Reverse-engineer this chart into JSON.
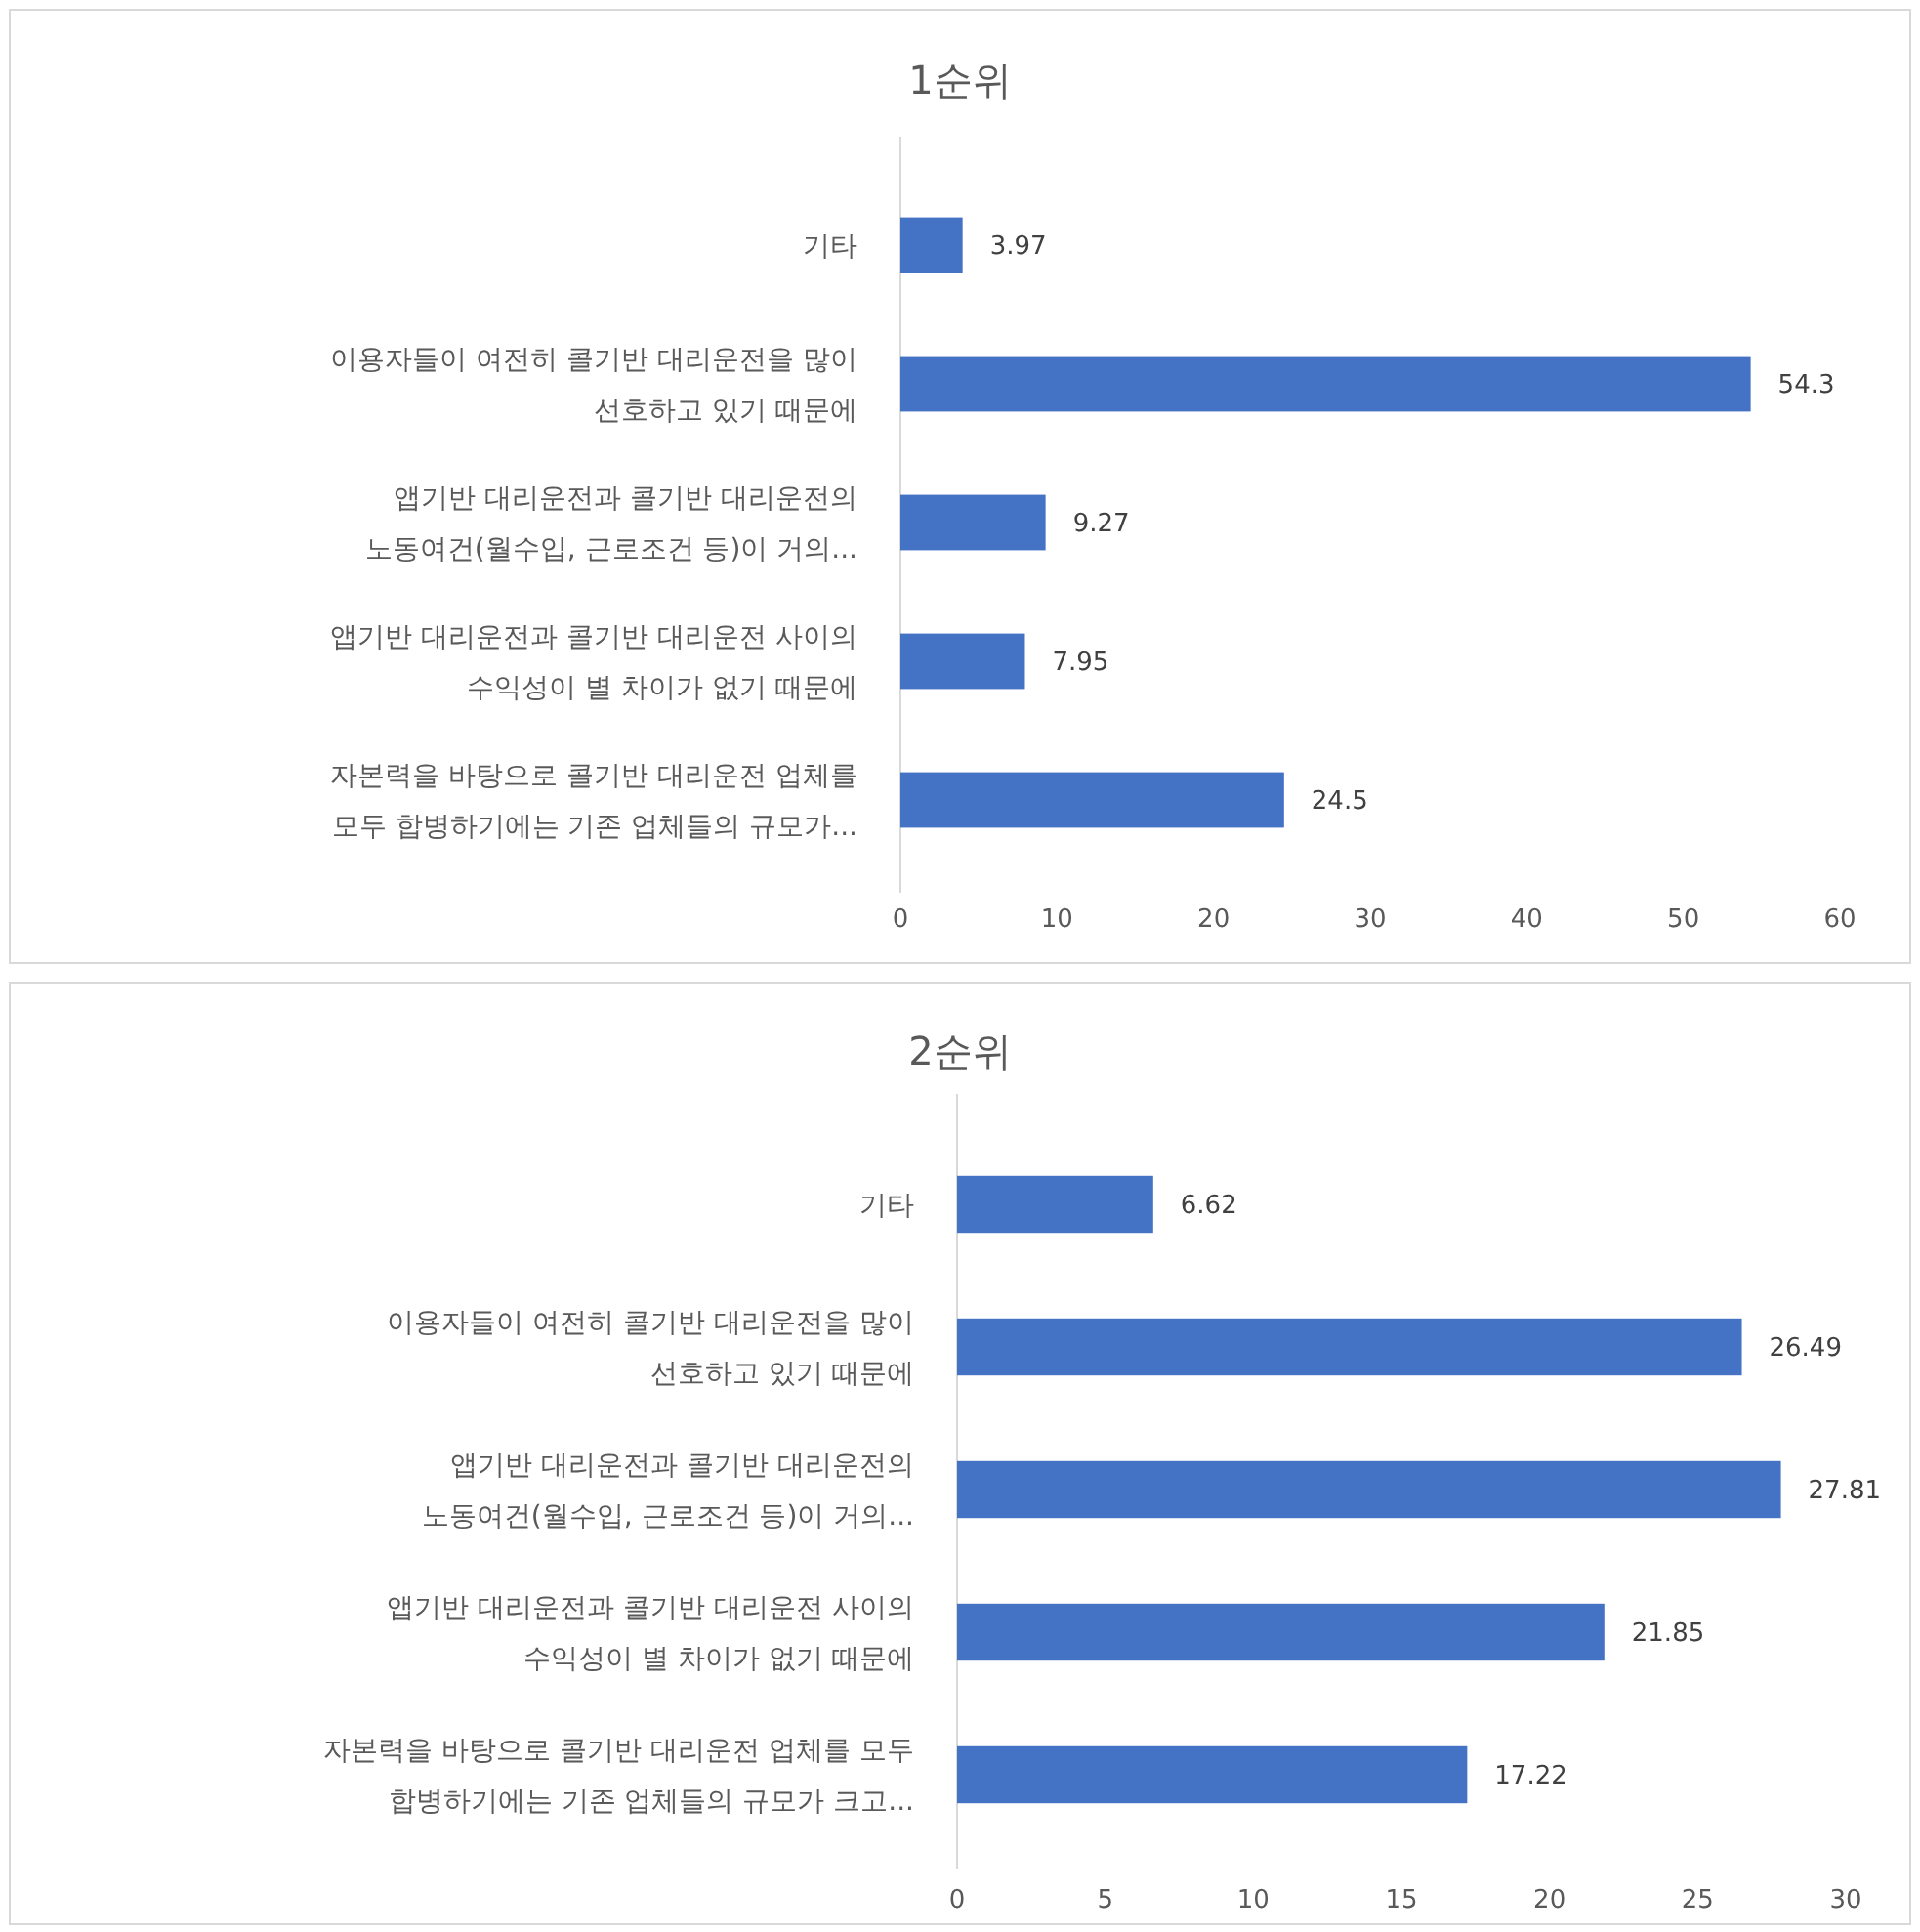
{
  "chart_data": [
    {
      "type": "bar",
      "orientation": "horizontal",
      "title": "1순위",
      "categories": [
        "기타",
        "이용자들이 여전히 콜기반 대리운전을 많이\n선호하고 있기 때문에",
        "앱기반 대리운전과 콜기반 대리운전의\n노동여건(월수입, 근로조건 등)이 거의...",
        "앱기반 대리운전과 콜기반 대리운전 사이의\n수익성이 별 차이가 없기 때문에",
        "자본력을 바탕으로 콜기반 대리운전 업체를\n모두 합병하기에는 기존 업체들의 규모가..."
      ],
      "values": [
        3.97,
        54.3,
        9.27,
        7.95,
        24.5
      ],
      "color": "#4472c4",
      "xlim": [
        0,
        60
      ],
      "xticks": [
        0,
        10,
        20,
        30,
        40,
        50,
        60
      ],
      "data_labels": true
    },
    {
      "type": "bar",
      "orientation": "horizontal",
      "title": "2순위",
      "categories": [
        "기타",
        "이용자들이 여전히 콜기반 대리운전을 많이\n선호하고 있기 때문에",
        "앱기반 대리운전과 콜기반 대리운전의\n노동여건(월수입, 근로조건 등)이 거의...",
        "앱기반 대리운전과 콜기반 대리운전 사이의\n수익성이 별 차이가 없기 때문에",
        "자본력을 바탕으로 콜기반 대리운전 업체를 모두\n합병하기에는 기존 업체들의 규모가 크고..."
      ],
      "values": [
        6.62,
        26.49,
        27.81,
        21.85,
        17.22
      ],
      "color": "#4472c4",
      "xlim": [
        0,
        30
      ],
      "xticks": [
        0,
        5,
        10,
        15,
        20,
        25,
        30
      ],
      "data_labels": true
    }
  ]
}
